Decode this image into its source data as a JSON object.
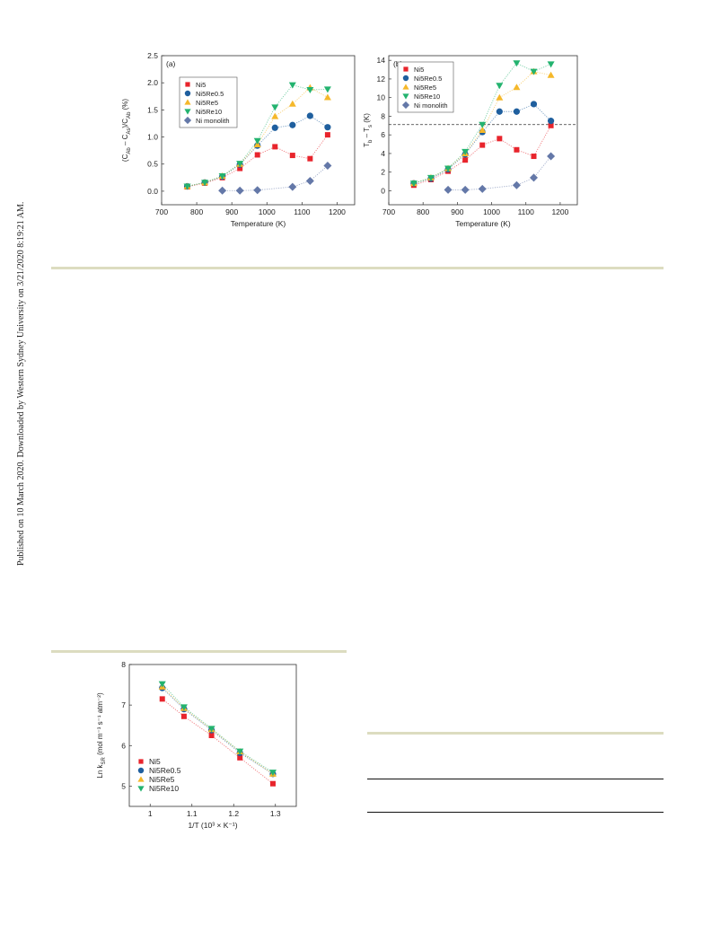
{
  "side_note": "Published on 10 March 2020. Downloaded by Western Sydney University on 3/21/2020 8:19:21 AM.",
  "colors": {
    "Ni5": "#e8242c",
    "Ni5Re0.5": "#1f5f9e",
    "Ni5Re5": "#f5b82a",
    "Ni5Re10": "#23b36f",
    "Ni monolith": "#6478a8"
  },
  "chart_data": [
    {
      "id": "a",
      "type": "scatter",
      "panel_label": "(a)",
      "xlabel": "Temperature (K)",
      "ylabel": "(C_Ab – C_As)/C_Ab (%)",
      "xlim": [
        700,
        1250
      ],
      "ylim": [
        -0.25,
        2.5
      ],
      "xticks": [
        700,
        800,
        900,
        1000,
        1100,
        1200
      ],
      "yticks": [
        0.0,
        0.5,
        1.0,
        1.5,
        2.0,
        2.5
      ],
      "ytick_labels": [
        "0.0",
        "0.5",
        "1.0",
        "1.5",
        "2.0",
        "2.5"
      ],
      "legend": "top-left",
      "series": [
        {
          "name": "Ni5",
          "marker": "square",
          "x": [
            773,
            823,
            873,
            923,
            973,
            1023,
            1073,
            1123,
            1173
          ],
          "y": [
            0.08,
            0.15,
            0.25,
            0.42,
            0.67,
            0.82,
            0.66,
            0.6,
            1.04
          ]
        },
        {
          "name": "Ni5Re0.5",
          "marker": "circle",
          "x": [
            773,
            823,
            873,
            923,
            973,
            1023,
            1073,
            1123,
            1173
          ],
          "y": [
            0.09,
            0.16,
            0.27,
            0.49,
            0.84,
            1.17,
            1.22,
            1.39,
            1.18
          ]
        },
        {
          "name": "Ni5Re5",
          "marker": "triangle-up",
          "x": [
            773,
            823,
            873,
            923,
            973,
            1023,
            1073,
            1123,
            1173
          ],
          "y": [
            0.09,
            0.16,
            0.28,
            0.5,
            0.86,
            1.38,
            1.61,
            1.91,
            1.73
          ]
        },
        {
          "name": "Ni5Re10",
          "marker": "triangle-down",
          "x": [
            773,
            823,
            873,
            923,
            973,
            1023,
            1073,
            1123,
            1173
          ],
          "y": [
            0.09,
            0.16,
            0.28,
            0.51,
            0.93,
            1.55,
            1.96,
            1.87,
            1.88
          ]
        },
        {
          "name": "Ni monolith",
          "marker": "diamond",
          "x": [
            873,
            923,
            973,
            1073,
            1123,
            1173
          ],
          "y": [
            0.01,
            0.01,
            0.02,
            0.08,
            0.19,
            0.47
          ]
        }
      ]
    },
    {
      "id": "b",
      "type": "scatter",
      "panel_label": "(b)",
      "xlabel": "Temperature (K)",
      "ylabel": "T_b – T_s (K)",
      "xlim": [
        700,
        1250
      ],
      "ylim": [
        -1.5,
        14.5
      ],
      "xticks": [
        700,
        800,
        900,
        1000,
        1100,
        1200
      ],
      "yticks": [
        0,
        2,
        4,
        6,
        8,
        10,
        12,
        14
      ],
      "ytick_labels": [
        "0",
        "2",
        "4",
        "6",
        "8",
        "10",
        "12",
        "14"
      ],
      "reference_line_y": 7.1,
      "legend": "top-left",
      "series": [
        {
          "name": "Ni5",
          "marker": "square",
          "x": [
            773,
            823,
            873,
            923,
            973,
            1023,
            1073,
            1123,
            1173
          ],
          "y": [
            0.6,
            1.2,
            2.1,
            3.3,
            4.9,
            5.6,
            4.4,
            3.7,
            7.0
          ]
        },
        {
          "name": "Ni5Re0.5",
          "marker": "circle",
          "x": [
            773,
            823,
            873,
            923,
            973,
            1023,
            1073,
            1123,
            1173
          ],
          "y": [
            0.8,
            1.3,
            2.3,
            3.9,
            6.3,
            8.5,
            8.5,
            9.3,
            7.5
          ]
        },
        {
          "name": "Ni5Re5",
          "marker": "triangle-up",
          "x": [
            773,
            823,
            873,
            923,
            973,
            1023,
            1073,
            1123,
            1173
          ],
          "y": [
            0.8,
            1.4,
            2.4,
            4.0,
            6.5,
            10.0,
            11.1,
            12.8,
            12.4
          ]
        },
        {
          "name": "Ni5Re10",
          "marker": "triangle-down",
          "x": [
            773,
            823,
            873,
            923,
            973,
            1023,
            1073,
            1123,
            1173
          ],
          "y": [
            0.8,
            1.4,
            2.4,
            4.2,
            7.1,
            11.3,
            13.7,
            12.8,
            13.6
          ]
        },
        {
          "name": "Ni monolith",
          "marker": "diamond",
          "x": [
            873,
            923,
            973,
            1073,
            1123,
            1173
          ],
          "y": [
            0.1,
            0.1,
            0.2,
            0.6,
            1.4,
            3.7
          ]
        }
      ]
    },
    {
      "id": "c",
      "type": "scatter",
      "xlabel": "1/T (10³ × K⁻¹)",
      "ylabel": "Ln k_SR (mol m⁻³ s⁻¹ atm⁻²)",
      "xlim": [
        0.95,
        1.35
      ],
      "ylim": [
        4.5,
        8.0
      ],
      "xticks": [
        1.0,
        1.1,
        1.2,
        1.3
      ],
      "yticks": [
        5,
        6,
        7,
        8
      ],
      "ytick_labels": [
        "5",
        "6",
        "7",
        "8"
      ],
      "legend": "bottom-left",
      "series": [
        {
          "name": "Ni5",
          "marker": "square",
          "x": [
            1.029,
            1.081,
            1.147,
            1.215,
            1.294
          ],
          "y": [
            7.15,
            6.72,
            6.25,
            5.7,
            5.06
          ]
        },
        {
          "name": "Ni5Re0.5",
          "marker": "circle",
          "x": [
            1.029,
            1.081,
            1.147,
            1.215,
            1.294
          ],
          "y": [
            7.42,
            6.9,
            6.38,
            5.82,
            5.3
          ]
        },
        {
          "name": "Ni5Re5",
          "marker": "triangle-up",
          "x": [
            1.029,
            1.081,
            1.147,
            1.215,
            1.294
          ],
          "y": [
            7.45,
            6.92,
            6.4,
            5.85,
            5.3
          ]
        },
        {
          "name": "Ni5Re10",
          "marker": "triangle-down",
          "x": [
            1.029,
            1.081,
            1.147,
            1.215,
            1.294
          ],
          "y": [
            7.52,
            6.95,
            6.42,
            5.86,
            5.34
          ]
        }
      ]
    }
  ]
}
